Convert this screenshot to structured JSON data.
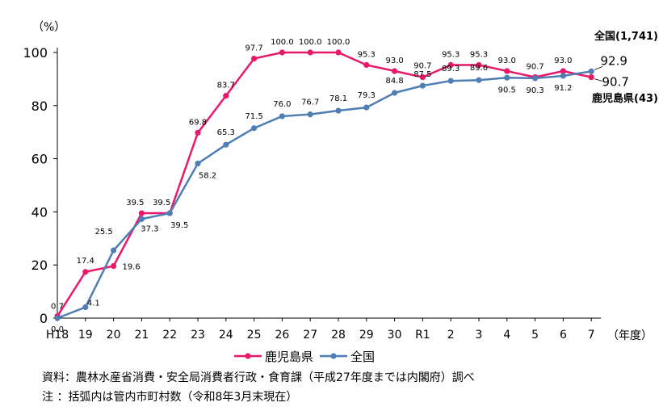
{
  "chart_data": {
    "type": "line",
    "unit_label": "（%）",
    "x_unit": "（年度）",
    "categories": [
      "H18",
      "19",
      "20",
      "21",
      "22",
      "23",
      "24",
      "25",
      "26",
      "27",
      "28",
      "29",
      "30",
      "R1",
      "2",
      "3",
      "4",
      "5",
      "6",
      "7"
    ],
    "y_ticks": [
      "0",
      "20",
      "40",
      "60",
      "80",
      "100"
    ],
    "ylim": [
      0,
      100
    ],
    "grid": false,
    "legend_position": "bottom",
    "series": [
      {
        "name": "鹿児島県",
        "color": "#e8196b",
        "values": [
          0.7,
          17.4,
          19.6,
          39.5,
          39.5,
          69.8,
          83.7,
          97.7,
          100.0,
          100.0,
          100.0,
          95.3,
          93.0,
          90.7,
          95.3,
          95.3,
          93.0,
          90.7,
          93.0,
          90.7
        ],
        "labels": [
          "0.7",
          "17.4",
          "19.6",
          "39.5",
          "39.5",
          "69.8",
          "83.7",
          "97.7",
          "100.0",
          "100.0",
          "100.0",
          "95.3",
          "93.0",
          "90.7",
          "95.3",
          "95.3",
          "93.0",
          "90.7",
          "93.0",
          "90.7"
        ],
        "end_label": "鹿児島県(43)"
      },
      {
        "name": "全国",
        "color": "#4f7eb5",
        "values": [
          0.0,
          4.1,
          25.5,
          37.3,
          39.5,
          58.2,
          65.3,
          71.5,
          76.0,
          76.7,
          78.1,
          79.3,
          84.8,
          87.5,
          89.3,
          89.6,
          90.5,
          90.3,
          91.2,
          92.9
        ],
        "labels": [
          "0.0",
          "4.1",
          "25.5",
          "37.3",
          "39.5",
          "58.2",
          "65.3",
          "71.5",
          "76.0",
          "76.7",
          "78.1",
          "79.3",
          "84.8",
          "87.5",
          "89.3",
          "89.6",
          "90.5",
          "90.3",
          "91.2",
          "92.9"
        ],
        "end_label": "全国(1,741)"
      }
    ]
  },
  "notes": {
    "source": "資料：農林水産省消費・安全局消費者行政・食育課（平成27年度までは内閣府）調べ",
    "note": "注 ：括弧内は管内市町村数（令和8年3月末現在）"
  }
}
